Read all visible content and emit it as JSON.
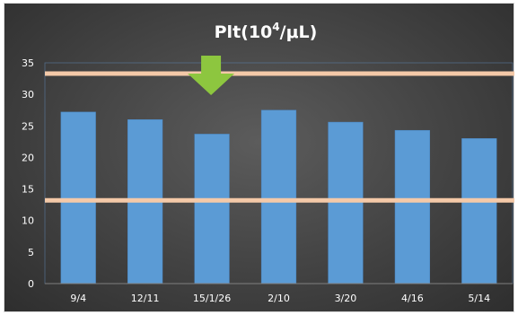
{
  "chart_data": {
    "type": "bar",
    "title": {
      "main": "Plt(10",
      "sup": "4",
      "tail": "/μL)"
    },
    "categories": [
      "9/4",
      "12/11",
      "15/1/26",
      "2/10",
      "3/20",
      "4/16",
      "5/14"
    ],
    "values": [
      27.2,
      26.0,
      23.7,
      27.5,
      25.6,
      24.3,
      23.0
    ],
    "ylim": [
      0,
      35
    ],
    "yticks": [
      "0",
      "5",
      "10",
      "15",
      "20",
      "25",
      "30",
      "35"
    ],
    "reference_lines": [
      33.3,
      13.2
    ],
    "marker": {
      "type": "down-arrow",
      "category": "15/1/26"
    },
    "grid": false,
    "colors": {
      "bar": "#5b9bd5",
      "bar_edge": "#4a86c2",
      "reference_line": "#f4c9a8",
      "arrow": "#8dc63f",
      "axis": "#7f7f7f",
      "plot_border": "#5b7fa8"
    }
  }
}
